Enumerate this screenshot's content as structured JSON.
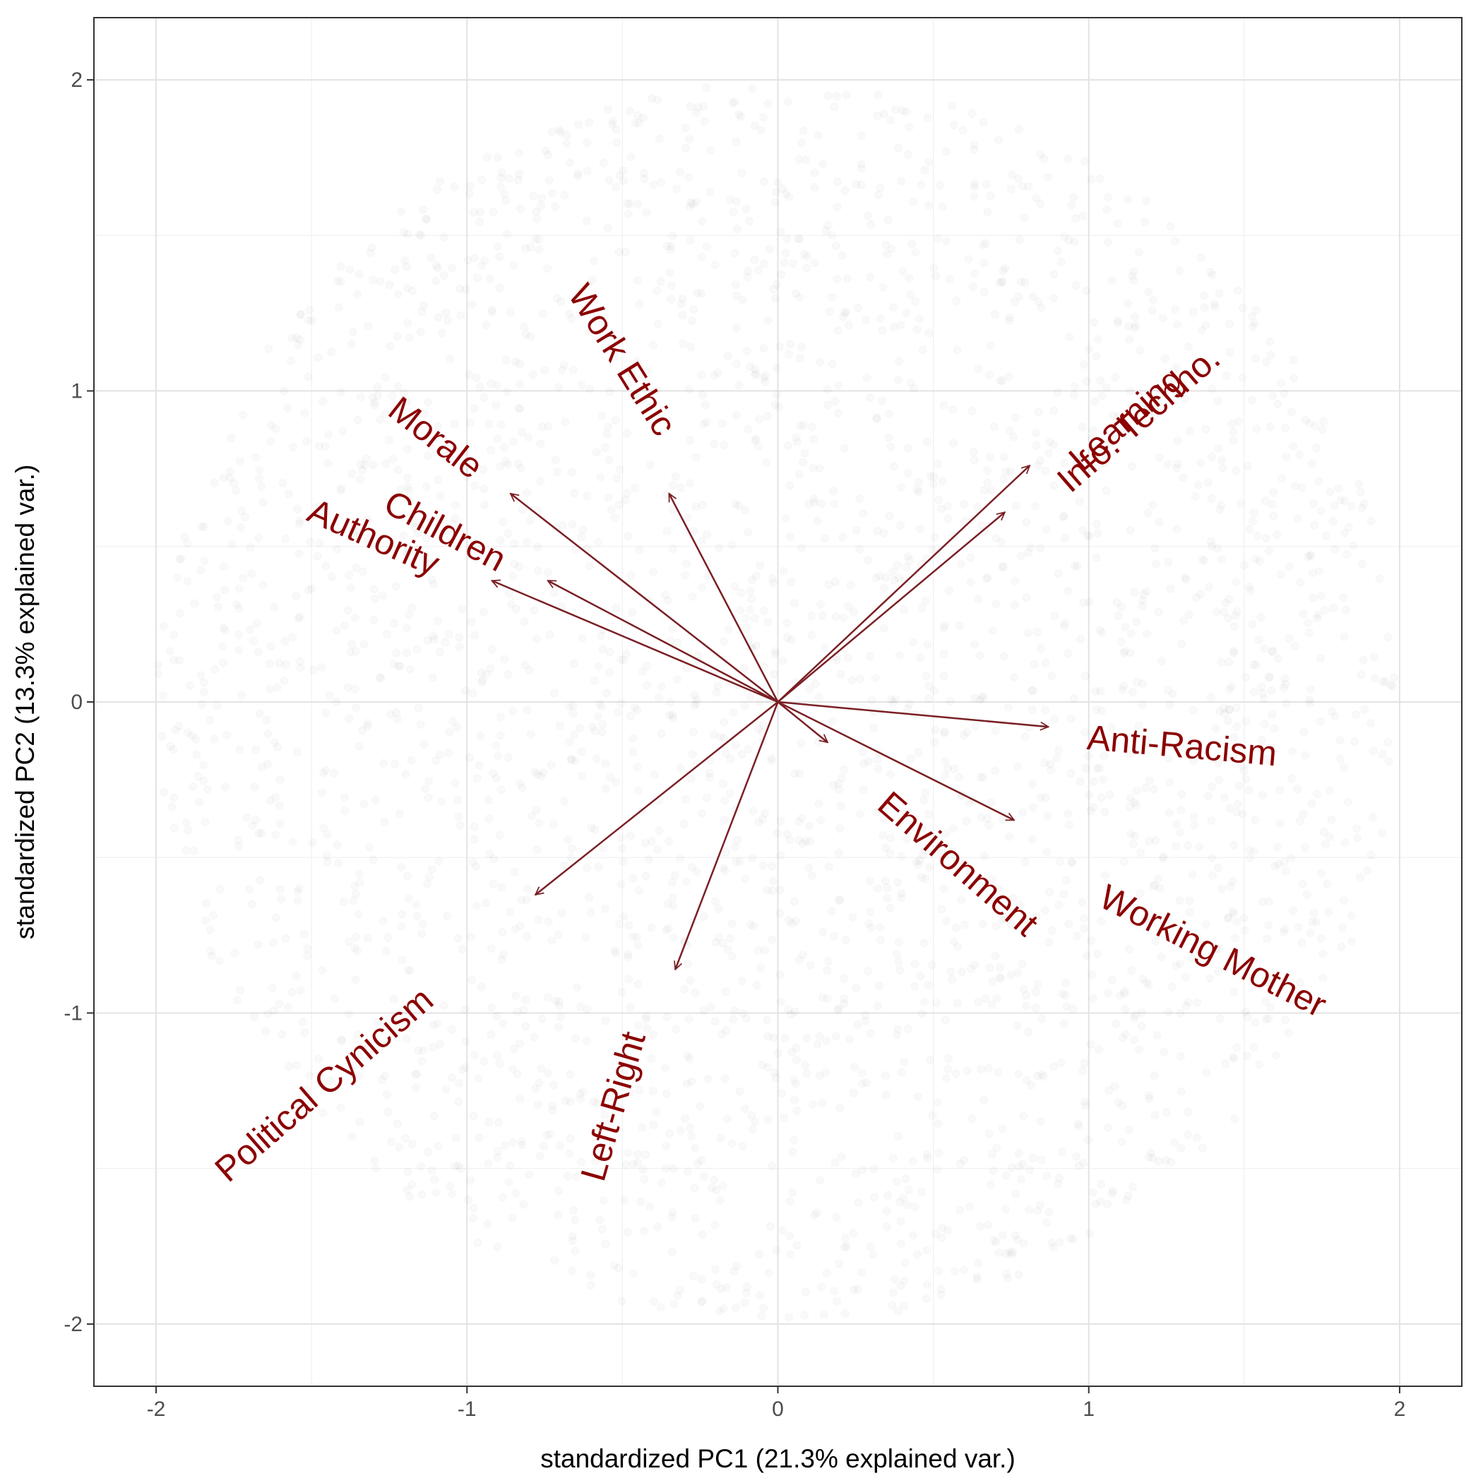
{
  "chart_data": {
    "type": "scatter",
    "subtype": "pca-biplot",
    "xlabel": "standardized PC1 (21.3% explained var.)",
    "ylabel": "standardized PC2 (13.3% explained var.)",
    "xlim": [
      -2.2,
      2.2
    ],
    "ylim": [
      -2.2,
      2.2
    ],
    "x_ticks": [
      {
        "value": -2,
        "label": "-2"
      },
      {
        "value": -1,
        "label": "-1"
      },
      {
        "value": 0,
        "label": "0"
      },
      {
        "value": 1,
        "label": "1"
      },
      {
        "value": 2,
        "label": "2"
      }
    ],
    "y_ticks": [
      {
        "value": -2,
        "label": "-2"
      },
      {
        "value": -1,
        "label": "-1"
      },
      {
        "value": 0,
        "label": "0"
      },
      {
        "value": 1,
        "label": "1"
      },
      {
        "value": 2,
        "label": "2"
      }
    ],
    "grid": true,
    "theme": "bw",
    "background_points": {
      "description_count": 3000,
      "color": "#000000",
      "opacity": 0.025,
      "distribution": "disk",
      "radius": 2
    },
    "vectors": [
      {
        "name": "Work Ethic",
        "x": -0.35,
        "y": 0.67,
        "label_x": -0.5,
        "label_y": 1.1,
        "label_angle": 58
      },
      {
        "name": "Morale",
        "x": -0.86,
        "y": 0.67,
        "label_x": -1.1,
        "label_y": 0.85,
        "label_angle": 38
      },
      {
        "name": "Children",
        "x": -0.74,
        "y": 0.39,
        "label_x": -1.07,
        "label_y": 0.55,
        "label_angle": 28
      },
      {
        "name": "Authority",
        "x": -0.92,
        "y": 0.39,
        "label_x": -1.3,
        "label_y": 0.53,
        "label_angle": 24
      },
      {
        "name": "Learning",
        "x": 0.81,
        "y": 0.76,
        "label_x": 1.12,
        "label_y": 0.91,
        "label_angle": -41
      },
      {
        "name": "Info. Techno.",
        "x": 0.73,
        "y": 0.61,
        "label_x": 1.16,
        "label_y": 0.91,
        "label_angle": -41
      },
      {
        "name": "Anti-Racism",
        "x": 0.87,
        "y": -0.08,
        "label_x": 1.3,
        "label_y": -0.14,
        "label_angle": 5
      },
      {
        "name": "Environment",
        "x": 0.16,
        "y": -0.13,
        "label_x": 0.58,
        "label_y": -0.52,
        "label_angle": 41
      },
      {
        "name": "Working Mother",
        "x": 0.76,
        "y": -0.38,
        "label_x": 1.4,
        "label_y": -0.8,
        "label_angle": 27
      },
      {
        "name": "Political Cynicism",
        "x": -0.78,
        "y": -0.62,
        "label_x": -1.46,
        "label_y": -1.23,
        "label_angle": -41
      },
      {
        "name": "Left-Right",
        "x": -0.33,
        "y": -0.86,
        "label_x": -0.53,
        "label_y": -1.3,
        "label_angle": -74
      }
    ],
    "vector_color": "#7a1f24",
    "label_color": "#8b0000"
  }
}
